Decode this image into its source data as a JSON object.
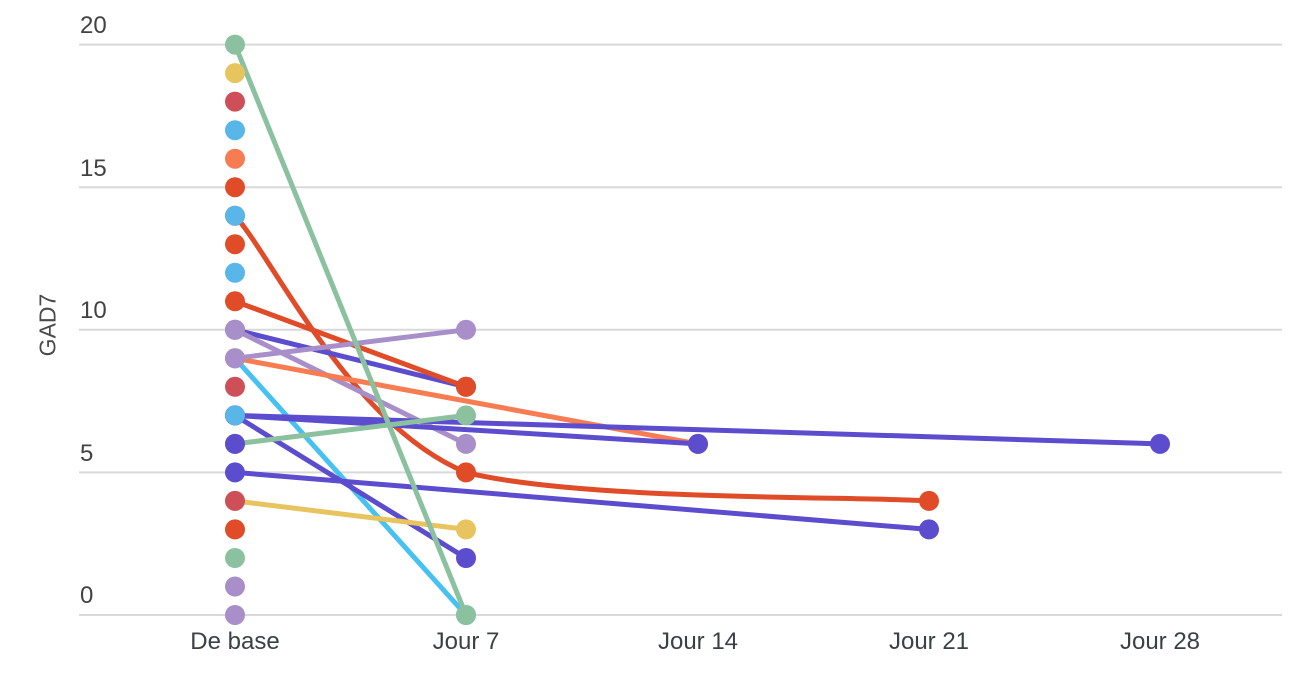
{
  "chart_data": {
    "type": "line",
    "title": "",
    "ylabel": "GAD7",
    "xlabel": "",
    "categories": [
      "De base",
      "Jour 7",
      "Jour 14",
      "Jour 21",
      "Jour 28"
    ],
    "y_ticks": [
      "20",
      "15",
      "10",
      "5",
      "0"
    ],
    "y_tick_values": [
      20,
      15,
      10,
      5,
      0
    ],
    "ylim": [
      0,
      20
    ],
    "grid": true,
    "legend": "none",
    "gridline_color": "#d9d9d9",
    "point_radius": 10,
    "line_width": 5,
    "palette": {
      "green": "#8BC19F",
      "yellow": "#E8C45F",
      "crimson": "#CE4F58",
      "lightblue": "#58B6E9",
      "orange": "#F87C51",
      "vermilion": "#E04B28",
      "cyan": "#47C1F2",
      "purple": "#A98FC9",
      "indigo": "#5C4CCE"
    },
    "series": [
      {
        "color_name": "yellow",
        "values": [
          19,
          null,
          null,
          null,
          null
        ]
      },
      {
        "color_name": "crimson",
        "values": [
          18,
          null,
          null,
          null,
          null
        ]
      },
      {
        "color_name": "lightblue",
        "values": [
          17,
          null,
          null,
          null,
          null
        ]
      },
      {
        "color_name": "orange",
        "values": [
          16,
          null,
          null,
          null,
          null
        ]
      },
      {
        "color_name": "vermilion",
        "values": [
          15,
          null,
          null,
          null,
          null
        ]
      },
      {
        "color_name": "vermilion",
        "values": [
          14,
          5,
          null,
          4,
          null
        ]
      },
      {
        "color_name": "lightblue",
        "values": [
          14,
          null,
          null,
          null,
          null
        ]
      },
      {
        "color_name": "vermilion",
        "values": [
          13,
          null,
          null,
          null,
          null
        ]
      },
      {
        "color_name": "lightblue",
        "values": [
          12,
          null,
          null,
          null,
          null
        ]
      },
      {
        "color_name": "indigo",
        "values": [
          10,
          8,
          null,
          null,
          null
        ]
      },
      {
        "color_name": "vermilion",
        "values": [
          11,
          8,
          null,
          null,
          null
        ]
      },
      {
        "color_name": "purple",
        "values": [
          10,
          6,
          null,
          null,
          null
        ]
      },
      {
        "color_name": "cyan",
        "values": [
          9,
          0,
          null,
          null,
          null
        ]
      },
      {
        "color_name": "orange",
        "values": [
          9,
          null,
          6,
          null,
          null
        ]
      },
      {
        "color_name": "purple",
        "values": [
          9,
          10,
          null,
          null,
          null
        ]
      },
      {
        "color_name": "crimson",
        "values": [
          8,
          null,
          null,
          null,
          null
        ]
      },
      {
        "color_name": "indigo",
        "values": [
          7,
          null,
          6,
          null,
          null
        ]
      },
      {
        "color_name": "indigo",
        "values": [
          7,
          null,
          null,
          null,
          6
        ]
      },
      {
        "color_name": "indigo",
        "values": [
          7,
          2,
          null,
          null,
          null
        ]
      },
      {
        "color_name": "lightblue",
        "values": [
          7,
          null,
          null,
          null,
          null
        ]
      },
      {
        "color_name": "green",
        "values": [
          6,
          7,
          null,
          null,
          null
        ]
      },
      {
        "color_name": "indigo",
        "values": [
          6,
          null,
          null,
          null,
          null
        ]
      },
      {
        "color_name": "indigo",
        "values": [
          5,
          null,
          null,
          3,
          null
        ]
      },
      {
        "color_name": "yellow",
        "values": [
          4,
          3,
          null,
          null,
          null
        ]
      },
      {
        "color_name": "crimson",
        "values": [
          4,
          null,
          null,
          null,
          null
        ]
      },
      {
        "color_name": "vermilion",
        "values": [
          3,
          null,
          null,
          null,
          null
        ]
      },
      {
        "color_name": "green",
        "values": [
          2,
          null,
          null,
          null,
          null
        ]
      },
      {
        "color_name": "purple",
        "values": [
          1,
          null,
          null,
          null,
          null
        ]
      },
      {
        "color_name": "purple",
        "values": [
          0,
          null,
          null,
          null,
          null
        ]
      },
      {
        "color_name": "green",
        "values": [
          20,
          0,
          null,
          null,
          null
        ]
      }
    ]
  }
}
